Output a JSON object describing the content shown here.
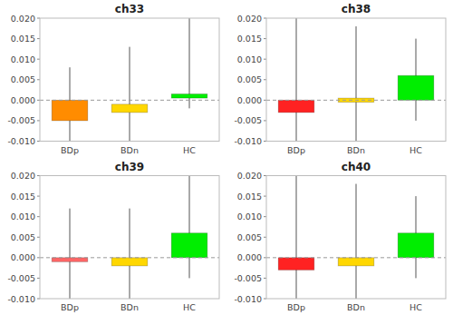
{
  "chart_data": [
    {
      "type": "bar",
      "title": "ch33",
      "categories": [
        "BDp",
        "BDn",
        "HC"
      ],
      "bottoms": [
        -0.005,
        -0.003,
        0.0005
      ],
      "values": [
        0.0,
        -0.001,
        0.0015
      ],
      "whisker_lows": [
        -0.01,
        -0.01,
        -0.002
      ],
      "whisker_highs": [
        0.008,
        0.013,
        0.02
      ],
      "colors": [
        "#FF8C00",
        "#FFD700",
        "#00EE00"
      ],
      "hline": 0,
      "ylim": [
        -0.01,
        0.02
      ],
      "yticks": [
        {
          "value": -0.01,
          "label": "-0.010"
        },
        -0.005,
        {
          "value": 0.0,
          "label": "0.000"
        },
        0.005,
        {
          "value": 0.01,
          "label": "0.010"
        },
        0.015,
        {
          "value": 0.02,
          "label": "0.020"
        }
      ],
      "grid": false
    },
    {
      "type": "bar",
      "title": "ch38",
      "categories": [
        "BDp",
        "BDn",
        "HC"
      ],
      "bottoms": [
        -0.003,
        -0.0005,
        0.0
      ],
      "values": [
        0.0,
        0.0005,
        0.006
      ],
      "whisker_lows": [
        -0.01,
        -0.01,
        -0.005
      ],
      "whisker_highs": [
        0.02,
        0.018,
        0.015
      ],
      "colors": [
        "#FF2222",
        "#FFD700",
        "#00EE00"
      ],
      "hline": 0,
      "ylim": [
        -0.01,
        0.02
      ],
      "yticks": [
        {
          "value": -0.01,
          "label": "-0.010"
        },
        -0.005,
        {
          "value": 0.0,
          "label": "0.000"
        },
        0.005,
        {
          "value": 0.01,
          "label": "0.010"
        },
        0.015,
        {
          "value": 0.02,
          "label": "0.020"
        }
      ],
      "grid": false
    },
    {
      "type": "bar",
      "title": "ch39",
      "categories": [
        "BDp",
        "BDn",
        "HC"
      ],
      "bottoms": [
        -0.001,
        -0.002,
        0.0
      ],
      "values": [
        0.0,
        0.0,
        0.006
      ],
      "whisker_lows": [
        -0.01,
        -0.01,
        -0.005
      ],
      "whisker_highs": [
        0.012,
        0.012,
        0.02
      ],
      "colors": [
        "#FF6666",
        "#FFD700",
        "#00EE00"
      ],
      "hline": 0,
      "ylim": [
        -0.01,
        0.02
      ],
      "yticks": [
        {
          "value": -0.01,
          "label": "-0.010"
        },
        -0.005,
        {
          "value": 0.0,
          "label": "0.000"
        },
        0.005,
        {
          "value": 0.01,
          "label": "0.010"
        },
        0.015,
        {
          "value": 0.02,
          "label": "0.020"
        }
      ],
      "grid": false
    },
    {
      "type": "bar",
      "title": "ch40",
      "categories": [
        "BDp",
        "BDn",
        "HC"
      ],
      "bottoms": [
        -0.003,
        -0.002,
        0.0
      ],
      "values": [
        0.0,
        0.0,
        0.006
      ],
      "whisker_lows": [
        -0.01,
        -0.01,
        -0.005
      ],
      "whisker_highs": [
        0.02,
        0.018,
        0.015
      ],
      "colors": [
        "#FF2222",
        "#FFD700",
        "#00EE00"
      ],
      "hline": 0,
      "ylim": [
        -0.01,
        0.02
      ],
      "yticks": [
        {
          "value": -0.01,
          "label": "-0.010"
        },
        -0.005,
        {
          "value": 0.0,
          "label": "0.000"
        },
        0.005,
        {
          "value": 0.01,
          "label": "0.010"
        },
        0.015,
        {
          "value": 0.02,
          "label": "0.020"
        }
      ],
      "grid": false
    }
  ]
}
